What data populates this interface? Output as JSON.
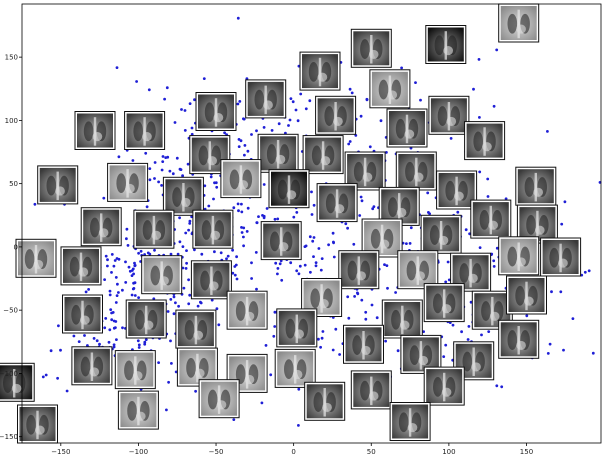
{
  "chart_data": {
    "type": "scatter",
    "title": "",
    "xlabel": "",
    "ylabel": "",
    "xlim": [
      -175,
      198
    ],
    "ylim": [
      -155,
      192
    ],
    "xticks": [
      -150,
      -100,
      -50,
      0,
      50,
      100,
      150
    ],
    "yticks": [
      -150,
      -100,
      -50,
      0,
      50,
      100,
      150
    ],
    "grid": false,
    "point_color": "#1f1fd6",
    "series": [
      {
        "name": "",
        "clusters": [
          {
            "cx": -95,
            "cy": -40,
            "sx": 22,
            "sy": 35,
            "n": 170
          },
          {
            "cx": -55,
            "cy": 55,
            "sx": 30,
            "sy": 30,
            "n": 160
          },
          {
            "cx": -70,
            "cy": -5,
            "sx": 30,
            "sy": 25,
            "n": 110
          },
          {
            "cx": -115,
            "cy": -85,
            "sx": 22,
            "sy": 14,
            "n": 70
          },
          {
            "cx": 30,
            "cy": -30,
            "sx": 35,
            "sy": 35,
            "n": 120
          },
          {
            "cx": 60,
            "cy": 90,
            "sx": 30,
            "sy": 30,
            "n": 80
          },
          {
            "cx": 95,
            "cy": 10,
            "sx": 35,
            "sy": 40,
            "n": 110
          },
          {
            "cx": 120,
            "cy": -60,
            "sx": 28,
            "sy": 25,
            "n": 60
          },
          {
            "cx": -20,
            "cy": 100,
            "sx": 30,
            "sy": 15,
            "n": 50
          },
          {
            "cx": 0,
            "cy": 0,
            "sx": 90,
            "sy": 70,
            "n": 140
          }
        ]
      }
    ],
    "thumbnails": [
      {
        "x": 145,
        "y": 177,
        "variant": "light"
      },
      {
        "x": 98,
        "y": 160,
        "variant": "dark"
      },
      {
        "x": 50,
        "y": 157,
        "variant": "medium"
      },
      {
        "x": 17,
        "y": 139,
        "variant": "medium"
      },
      {
        "x": 62,
        "y": 125,
        "variant": "light"
      },
      {
        "x": -18,
        "y": 117,
        "variant": "medium"
      },
      {
        "x": -50,
        "y": 107,
        "variant": "medium"
      },
      {
        "x": 27,
        "y": 104,
        "variant": "medium"
      },
      {
        "x": 100,
        "y": 104,
        "variant": "medium"
      },
      {
        "x": -128,
        "y": 92,
        "variant": "medium"
      },
      {
        "x": -96,
        "y": 92,
        "variant": "medium"
      },
      {
        "x": 73,
        "y": 94,
        "variant": "medium"
      },
      {
        "x": 123,
        "y": 84,
        "variant": "medium"
      },
      {
        "x": -54,
        "y": 73,
        "variant": "medium"
      },
      {
        "x": -10,
        "y": 74,
        "variant": "medium"
      },
      {
        "x": 19,
        "y": 73,
        "variant": "medium"
      },
      {
        "x": -152,
        "y": 49,
        "variant": "medium"
      },
      {
        "x": -107,
        "y": 51,
        "variant": "light"
      },
      {
        "x": -71,
        "y": 40,
        "variant": "medium"
      },
      {
        "x": -34,
        "y": 54,
        "variant": "light"
      },
      {
        "x": -3,
        "y": 46,
        "variant": "dark"
      },
      {
        "x": 46,
        "y": 60,
        "variant": "medium"
      },
      {
        "x": 79,
        "y": 60,
        "variant": "medium"
      },
      {
        "x": 105,
        "y": 45,
        "variant": "medium"
      },
      {
        "x": 156,
        "y": 48,
        "variant": "medium"
      },
      {
        "x": 28,
        "y": 35,
        "variant": "medium"
      },
      {
        "x": 68,
        "y": 32,
        "variant": "medium"
      },
      {
        "x": -124,
        "y": 16,
        "variant": "medium"
      },
      {
        "x": -90,
        "y": 14,
        "variant": "medium"
      },
      {
        "x": -52,
        "y": 14,
        "variant": "medium"
      },
      {
        "x": 95,
        "y": 10,
        "variant": "medium"
      },
      {
        "x": 127,
        "y": 22,
        "variant": "medium"
      },
      {
        "x": 157,
        "y": 18,
        "variant": "medium"
      },
      {
        "x": -8,
        "y": 5,
        "variant": "medium"
      },
      {
        "x": 57,
        "y": 7,
        "variant": "light"
      },
      {
        "x": -166,
        "y": -9,
        "variant": "light"
      },
      {
        "x": -137,
        "y": -15,
        "variant": "medium"
      },
      {
        "x": -85,
        "y": -22,
        "variant": "light"
      },
      {
        "x": -53,
        "y": -26,
        "variant": "medium"
      },
      {
        "x": 42,
        "y": -18,
        "variant": "medium"
      },
      {
        "x": 80,
        "y": -18,
        "variant": "light"
      },
      {
        "x": 114,
        "y": -20,
        "variant": "medium"
      },
      {
        "x": 145,
        "y": -7,
        "variant": "light"
      },
      {
        "x": 172,
        "y": -8,
        "variant": "medium"
      },
      {
        "x": 18,
        "y": -40,
        "variant": "light"
      },
      {
        "x": -136,
        "y": -53,
        "variant": "medium"
      },
      {
        "x": -95,
        "y": -57,
        "variant": "medium"
      },
      {
        "x": -30,
        "y": -50,
        "variant": "light"
      },
      {
        "x": 97,
        "y": -44,
        "variant": "medium"
      },
      {
        "x": 128,
        "y": -50,
        "variant": "medium"
      },
      {
        "x": 150,
        "y": -38,
        "variant": "medium"
      },
      {
        "x": 2,
        "y": -64,
        "variant": "medium"
      },
      {
        "x": -63,
        "y": -65,
        "variant": "medium"
      },
      {
        "x": 70,
        "y": -57,
        "variant": "medium"
      },
      {
        "x": 145,
        "y": -73,
        "variant": "medium"
      },
      {
        "x": -130,
        "y": -94,
        "variant": "medium"
      },
      {
        "x": -102,
        "y": -97,
        "variant": "light"
      },
      {
        "x": -62,
        "y": -95,
        "variant": "light"
      },
      {
        "x": -30,
        "y": -100,
        "variant": "light"
      },
      {
        "x": 1,
        "y": -96,
        "variant": "light"
      },
      {
        "x": 45,
        "y": -77,
        "variant": "medium"
      },
      {
        "x": 82,
        "y": -85,
        "variant": "medium"
      },
      {
        "x": 116,
        "y": -90,
        "variant": "medium"
      },
      {
        "x": -180,
        "y": -107,
        "variant": "dark"
      },
      {
        "x": -48,
        "y": -120,
        "variant": "light"
      },
      {
        "x": 20,
        "y": -122,
        "variant": "medium"
      },
      {
        "x": 50,
        "y": -113,
        "variant": "medium"
      },
      {
        "x": 97,
        "y": -110,
        "variant": "medium"
      },
      {
        "x": -100,
        "y": -129,
        "variant": "light"
      },
      {
        "x": -165,
        "y": -140,
        "variant": "medium"
      },
      {
        "x": 75,
        "y": -138,
        "variant": "medium"
      }
    ]
  }
}
